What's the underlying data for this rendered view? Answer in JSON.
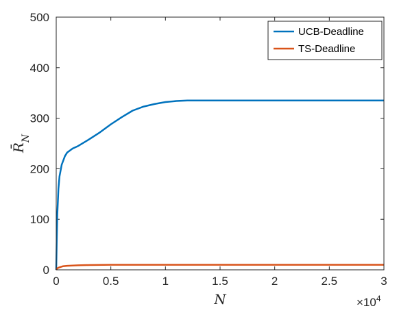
{
  "chart_data": {
    "type": "line",
    "xlabel": "N",
    "ylabel": "R̄N",
    "ylabel_main": "R̄",
    "ylabel_sub": "N",
    "x_exponent_base": "×10",
    "x_exponent_power": "4",
    "xlim": [
      0,
      3
    ],
    "ylim": [
      0,
      500
    ],
    "xticks": [
      0,
      0.5,
      1,
      1.5,
      2,
      2.5,
      3
    ],
    "xtick_labels": [
      "0",
      "0.5",
      "1",
      "1.5",
      "2",
      "2.5",
      "3"
    ],
    "yticks": [
      0,
      100,
      200,
      300,
      400,
      500
    ],
    "ytick_labels": [
      "0",
      "100",
      "200",
      "300",
      "400",
      "500"
    ],
    "grid": false,
    "legend_position": "top-right",
    "series": [
      {
        "name": "UCB-Deadline",
        "color": "#0072BD",
        "x": [
          0,
          0.005,
          0.01,
          0.02,
          0.03,
          0.05,
          0.08,
          0.1,
          0.15,
          0.2,
          0.3,
          0.4,
          0.5,
          0.6,
          0.7,
          0.8,
          0.9,
          1.0,
          1.1,
          1.2,
          1.5,
          2.0,
          2.5,
          3.0
        ],
        "y": [
          0,
          60,
          110,
          160,
          185,
          208,
          225,
          232,
          240,
          245,
          258,
          272,
          288,
          302,
          315,
          323,
          328,
          332,
          334,
          335,
          335,
          335,
          335,
          335
        ]
      },
      {
        "name": "TS-Deadline",
        "color": "#D95319",
        "x": [
          0,
          0.01,
          0.03,
          0.06,
          0.1,
          0.2,
          0.3,
          0.5,
          1.0,
          2.0,
          3.0
        ],
        "y": [
          0,
          3,
          5,
          7,
          8,
          9,
          9.5,
          10,
          10,
          10,
          10
        ]
      }
    ]
  }
}
